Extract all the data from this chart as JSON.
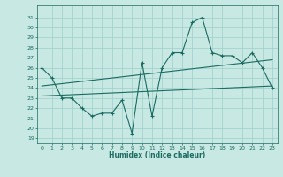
{
  "title": "",
  "xlabel": "Humidex (Indice chaleur)",
  "ylabel": "",
  "xlim": [
    -0.5,
    23.5
  ],
  "ylim": [
    18.5,
    32.2
  ],
  "xticks": [
    0,
    1,
    2,
    3,
    4,
    5,
    6,
    7,
    8,
    9,
    10,
    11,
    12,
    13,
    14,
    15,
    16,
    17,
    18,
    19,
    20,
    21,
    22,
    23
  ],
  "yticks": [
    19,
    20,
    21,
    22,
    23,
    24,
    25,
    26,
    27,
    28,
    29,
    30,
    31
  ],
  "bg_color": "#c8e8e4",
  "line_color": "#1a6b60",
  "grid_color": "#9dcfca",
  "scatter_data": [
    [
      0,
      26.0
    ],
    [
      1,
      25.0
    ],
    [
      2,
      23.0
    ],
    [
      3,
      23.0
    ],
    [
      4,
      22.0
    ],
    [
      5,
      21.2
    ],
    [
      6,
      21.5
    ],
    [
      7,
      21.5
    ],
    [
      8,
      22.8
    ],
    [
      9,
      19.5
    ],
    [
      10,
      26.5
    ],
    [
      11,
      21.2
    ],
    [
      12,
      26.0
    ],
    [
      13,
      27.5
    ],
    [
      14,
      27.5
    ],
    [
      15,
      30.5
    ],
    [
      16,
      31.0
    ],
    [
      17,
      27.5
    ],
    [
      18,
      27.2
    ],
    [
      19,
      27.2
    ],
    [
      20,
      26.5
    ],
    [
      21,
      27.5
    ],
    [
      22,
      26.0
    ],
    [
      23,
      24.0
    ]
  ],
  "trend_line1": [
    [
      0,
      24.2
    ],
    [
      23,
      26.8
    ]
  ],
  "trend_line2": [
    [
      0,
      23.2
    ],
    [
      23,
      24.2
    ]
  ],
  "figsize": [
    3.2,
    2.0
  ],
  "dpi": 100
}
